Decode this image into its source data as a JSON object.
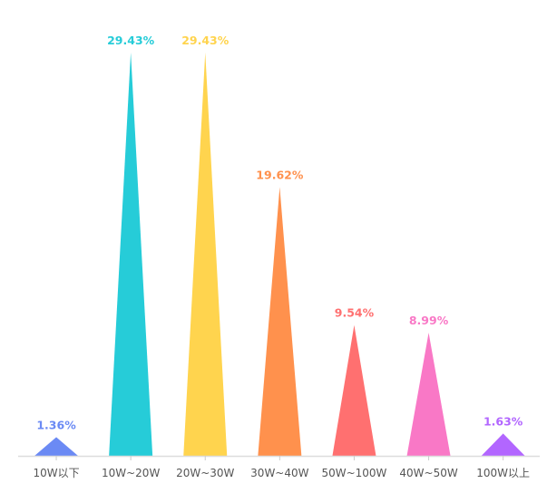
{
  "chart_data": {
    "type": "bar",
    "style": "triangle",
    "categories": [
      "10W以下",
      "10W~20W",
      "20W~30W",
      "30W~40W",
      "50W~100W",
      "40W~50W",
      "100W以上"
    ],
    "values": [
      1.36,
      29.43,
      29.43,
      19.62,
      9.54,
      8.99,
      1.63
    ],
    "labels": [
      "1.36%",
      "29.43%",
      "29.43%",
      "19.62%",
      "9.54%",
      "8.99%",
      "1.63%"
    ],
    "colors": [
      "#6B8AF4",
      "#26CCD8",
      "#FFD44E",
      "#FF914D",
      "#FF7070",
      "#F978C6",
      "#B266FF"
    ],
    "ylim": [
      0,
      29.43
    ],
    "grid": false,
    "title": "",
    "xlabel": "",
    "ylabel": ""
  }
}
